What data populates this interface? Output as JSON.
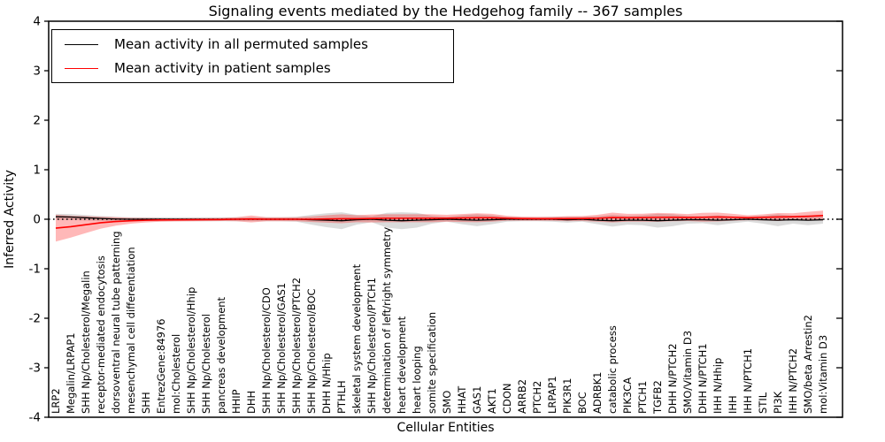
{
  "title": "Signaling events mediated by the Hedgehog family -- 367 samples",
  "legend": [
    {
      "label": "Mean activity in all permuted samples",
      "color": "#000000"
    },
    {
      "label": "Mean activity in patient samples",
      "color": "#ff0000"
    }
  ],
  "chart_data": {
    "type": "line",
    "title": "Signaling events mediated by the Hedgehog family -- 367 samples",
    "xlabel": "Cellular Entities",
    "ylabel": "Inferred Activity",
    "ylim": [
      -4,
      4
    ],
    "yticks": [
      "-4",
      "-3",
      "-2",
      "-1",
      "0",
      "1",
      "2",
      "3",
      "4"
    ],
    "grid": false,
    "legend_position": "upper left",
    "zero_line": {
      "value": 0,
      "style": "dotted",
      "color": "#000000"
    },
    "categories": [
      "LRP2",
      "Megalin/LRPAP1",
      "SHH Np/Cholesterol/Megalin",
      "receptor-mediated endocytosis",
      "dorsoventral neural tube patterning",
      "mesenchymal cell differentiation",
      "SHH",
      "EntrezGene:84976",
      "mol:Cholesterol",
      "SHH Np/Cholesterol/Hhip",
      "SHH Np/Cholesterol",
      "pancreas development",
      "HHIP",
      "DHH",
      "SHH Np/Cholesterol/CDO",
      "SHH Np/Cholesterol/GAS1",
      "SHH Np/Cholesterol/PTCH2",
      "SHH Np/Cholesterol/BOC",
      "DHH N/Hhip",
      "PTHLH",
      "skeletal system development",
      "SHH Np/Cholesterol/PTCH1",
      "determination of left/right symmetry",
      "heart development",
      "heart looping",
      "somite specification",
      "SMO",
      "HHAT",
      "GAS1",
      "AKT1",
      "CDON",
      "ARRB2",
      "PTCH2",
      "LRPAP1",
      "PIK3R1",
      "BOC",
      "ADRBK1",
      "catabolic process",
      "PIK3CA",
      "PTCH1",
      "TGFB2",
      "DHH N/PTCH2",
      "SMO/Vitamin D3",
      "DHH N/PTCH1",
      "IHH N/Hhip",
      "IHH",
      "IHH N/PTCH1",
      "STIL",
      "PI3K",
      "IHH N/PTCH2",
      "SMO/beta Arrestin2",
      "mol:Vitamin D3"
    ],
    "series": [
      {
        "name": "Mean activity in all permuted samples",
        "color": "#000000",
        "band_color": "rgba(0,0,0,0.14)",
        "values": [
          0.05,
          0.045,
          0.03,
          0.015,
          0.005,
          0,
          0,
          0,
          0,
          0,
          0,
          0,
          0,
          0,
          0,
          0,
          0,
          -0.01,
          -0.02,
          -0.03,
          -0.01,
          0,
          -0.02,
          -0.03,
          -0.02,
          -0.01,
          0,
          -0.01,
          -0.02,
          -0.01,
          0,
          0,
          0,
          0,
          -0.01,
          0,
          -0.02,
          -0.03,
          -0.02,
          -0.02,
          -0.03,
          -0.02,
          -0.01,
          -0.01,
          -0.02,
          -0.01,
          0,
          -0.01,
          -0.02,
          -0.01,
          -0.02,
          -0.01
        ],
        "std": [
          0.06,
          0.06,
          0.055,
          0.05,
          0.045,
          0.04,
          0.04,
          0.04,
          0.04,
          0.04,
          0.04,
          0.04,
          0.04,
          0.04,
          0.04,
          0.04,
          0.05,
          0.1,
          0.14,
          0.17,
          0.1,
          0.06,
          0.15,
          0.17,
          0.15,
          0.08,
          0.05,
          0.09,
          0.12,
          0.09,
          0.05,
          0.04,
          0.04,
          0.05,
          0.06,
          0.05,
          0.08,
          0.12,
          0.09,
          0.1,
          0.14,
          0.12,
          0.08,
          0.07,
          0.1,
          0.07,
          0.05,
          0.08,
          0.12,
          0.08,
          0.1,
          0.08
        ]
      },
      {
        "name": "Mean activity in patient samples",
        "color": "#ff0000",
        "band_color": "rgba(255,0,0,0.28)",
        "values": [
          -0.18,
          -0.15,
          -0.11,
          -0.07,
          -0.045,
          -0.03,
          -0.02,
          -0.015,
          -0.012,
          -0.01,
          -0.008,
          -0.005,
          0,
          0.005,
          0,
          0,
          0,
          0,
          0.005,
          0.01,
          0.01,
          0.015,
          0.02,
          0.02,
          0.02,
          0.02,
          0.02,
          0.025,
          0.03,
          0.03,
          0.02,
          0.012,
          0.01,
          0.01,
          0.012,
          0.015,
          0.02,
          0.035,
          0.03,
          0.032,
          0.038,
          0.04,
          0.035,
          0.04,
          0.045,
          0.04,
          0.03,
          0.038,
          0.045,
          0.05,
          0.06,
          0.075
        ],
        "std": [
          0.27,
          0.22,
          0.17,
          0.12,
          0.085,
          0.06,
          0.045,
          0.035,
          0.03,
          0.03,
          0.03,
          0.03,
          0.04,
          0.07,
          0.04,
          0.04,
          0.04,
          0.055,
          0.075,
          0.09,
          0.07,
          0.08,
          0.08,
          0.08,
          0.08,
          0.08,
          0.07,
          0.08,
          0.09,
          0.08,
          0.05,
          0.04,
          0.04,
          0.04,
          0.05,
          0.05,
          0.07,
          0.1,
          0.08,
          0.08,
          0.09,
          0.08,
          0.07,
          0.09,
          0.09,
          0.07,
          0.05,
          0.06,
          0.08,
          0.07,
          0.09,
          0.1
        ]
      }
    ]
  }
}
